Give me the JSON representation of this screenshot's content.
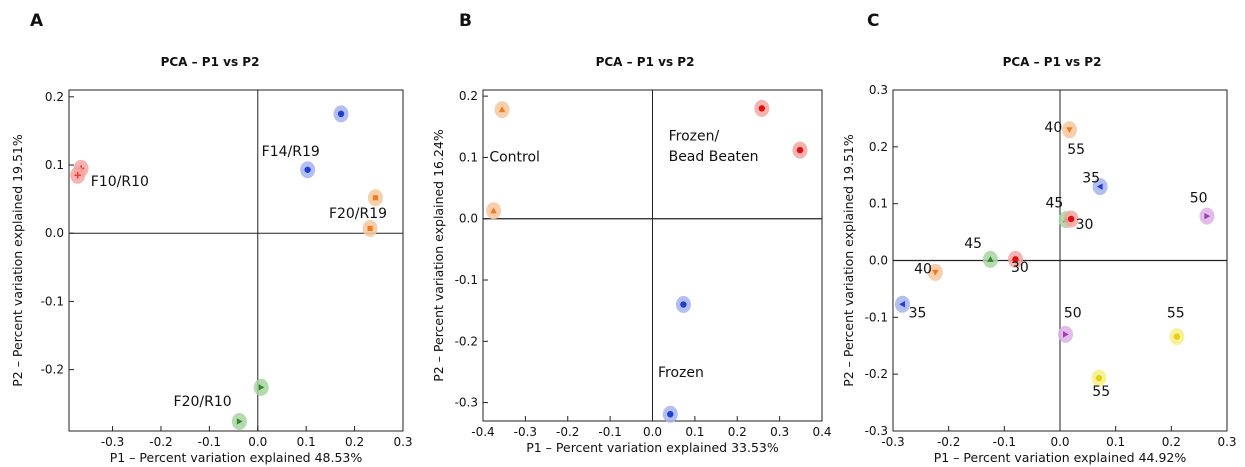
{
  "chart_data": [
    {
      "panel": "A",
      "type": "scatter",
      "title": "PCA – P1 vs P2",
      "xlabel": "P1 – Percent variation explained 48.53%",
      "ylabel": "P2 – Percent variation explained 19.51%",
      "xlim": [
        -0.39,
        0.3
      ],
      "ylim": [
        -0.29,
        0.21
      ],
      "xticks": [
        -0.3,
        -0.2,
        -0.1,
        0.0,
        0.1,
        0.2,
        0.3
      ],
      "yticks": [
        -0.3,
        -0.2,
        -0.1,
        0.0,
        0.1,
        0.2
      ],
      "xtick_labels": [
        "-0.3",
        "-0.2",
        "-0.1",
        "0.0",
        "0.1",
        "0.2",
        "0.3"
      ],
      "ytick_labels": [
        "",
        "-0.2",
        "-0.1",
        "0.0",
        "0.1",
        "0.2"
      ],
      "grid": false,
      "points": [
        {
          "x": -0.365,
          "y": 0.095,
          "color": "#e8423a",
          "halo": "#f4a6a2",
          "marker": "cross"
        },
        {
          "x": -0.372,
          "y": 0.085,
          "color": "#e8423a",
          "halo": "#f4a6a2",
          "marker": "cross"
        },
        {
          "x": 0.172,
          "y": 0.175,
          "color": "#1f3fd6",
          "halo": "#a6b3ef",
          "marker": "dot"
        },
        {
          "x": 0.103,
          "y": 0.093,
          "color": "#1f3fd6",
          "halo": "#a6b3ef",
          "marker": "dot"
        },
        {
          "x": 0.243,
          "y": 0.052,
          "color": "#f07a1c",
          "halo": "#f7c79f",
          "marker": "square"
        },
        {
          "x": 0.232,
          "y": 0.007,
          "color": "#f07a1c",
          "halo": "#f7c79f",
          "marker": "square"
        },
        {
          "x": 0.007,
          "y": -0.226,
          "color": "#2f8a2f",
          "halo": "#a8d3a2",
          "marker": "tri-right"
        },
        {
          "x": -0.038,
          "y": -0.276,
          "color": "#2f8a2f",
          "halo": "#a8d3a2",
          "marker": "tri-right"
        }
      ],
      "annotations": [
        {
          "text": "F10/R10",
          "x": -0.345,
          "y": 0.069
        },
        {
          "text": "F14/R19",
          "x": 0.008,
          "y": 0.113
        },
        {
          "text": "F20/R19",
          "x": 0.147,
          "y": 0.022
        },
        {
          "text": "F20/R10",
          "x": -0.174,
          "y": -0.253
        }
      ]
    },
    {
      "panel": "B",
      "type": "scatter",
      "title": "PCA – P1 vs P2",
      "xlabel": "P1 – Percent variation explained 33.53%",
      "ylabel": "P2 – Percent variation explained 16.24%",
      "xlim": [
        -0.4,
        0.4
      ],
      "ylim": [
        -0.33,
        0.21
      ],
      "xticks": [
        -0.4,
        -0.3,
        -0.2,
        -0.1,
        0.0,
        0.1,
        0.2,
        0.3,
        0.4
      ],
      "yticks": [
        -0.3,
        -0.2,
        -0.1,
        0.0,
        0.1,
        0.2
      ],
      "xtick_labels": [
        "-0.4",
        "-0.3",
        "-0.2",
        "-0.1",
        "0.0",
        "0.1",
        "0.2",
        "0.3",
        "0.4"
      ],
      "ytick_labels": [
        "-0.3",
        "-0.2",
        "-0.1",
        "0.0",
        "0.1",
        "0.2"
      ],
      "grid": false,
      "points": [
        {
          "x": -0.355,
          "y": 0.178,
          "color": "#f07a1c",
          "halo": "#f7c79f",
          "marker": "tri-up"
        },
        {
          "x": -0.375,
          "y": 0.013,
          "color": "#f07a1c",
          "halo": "#f7c79f",
          "marker": "tri-up"
        },
        {
          "x": 0.258,
          "y": 0.18,
          "color": "#e01010",
          "halo": "#f4a6a2",
          "marker": "dot"
        },
        {
          "x": 0.348,
          "y": 0.112,
          "color": "#e01010",
          "halo": "#f4a6a2",
          "marker": "dot"
        },
        {
          "x": 0.073,
          "y": -0.14,
          "color": "#1f3fd6",
          "halo": "#a6b3ef",
          "marker": "dot"
        },
        {
          "x": 0.042,
          "y": -0.319,
          "color": "#1f3fd6",
          "halo": "#a6b3ef",
          "marker": "dot"
        }
      ],
      "annotations": [
        {
          "text": "Control",
          "x": -0.385,
          "y": 0.093
        },
        {
          "text": "Frozen/",
          "x": 0.038,
          "y": 0.128
        },
        {
          "text": "Bead Beaten",
          "x": 0.038,
          "y": 0.094
        },
        {
          "text": "Frozen",
          "x": 0.013,
          "y": -0.258
        }
      ]
    },
    {
      "panel": "C",
      "type": "scatter",
      "title": "PCA – P1 vs P2",
      "xlabel": "P1 – Percent variation explained 44.92%",
      "ylabel": "P2 – Percent variation explained 19.51%",
      "xlim": [
        -0.3,
        0.3
      ],
      "ylim": [
        -0.3,
        0.3
      ],
      "xticks": [
        -0.3,
        -0.2,
        -0.1,
        0.0,
        0.1,
        0.2,
        0.3
      ],
      "yticks": [
        -0.3,
        -0.2,
        -0.1,
        0.0,
        0.1,
        0.2,
        0.3
      ],
      "xtick_labels": [
        "-0.3",
        "-0.2",
        "-0.1",
        "0.0",
        "0.1",
        "0.2",
        "0.3"
      ],
      "ytick_labels": [
        "-0.3",
        "-0.2",
        "-0.1",
        "0.0",
        "0.1",
        "0.2",
        "0.3"
      ],
      "grid": false,
      "points": [
        {
          "x": 0.017,
          "y": 0.23,
          "color": "#f07a1c",
          "halo": "#f7c79f",
          "marker": "tri-down"
        },
        {
          "x": 0.072,
          "y": 0.13,
          "color": "#1f3fd6",
          "halo": "#a6b3ef",
          "marker": "tri-left"
        },
        {
          "x": 0.011,
          "y": 0.072,
          "color": "#2f8a2f",
          "halo": "#a8d3a2",
          "marker": "tri-up"
        },
        {
          "x": 0.02,
          "y": 0.073,
          "color": "#e01010",
          "halo": "#f4a6a2",
          "marker": "dot"
        },
        {
          "x": 0.264,
          "y": 0.078,
          "color": "#a23ab8",
          "halo": "#ddb1e6",
          "marker": "tri-right"
        },
        {
          "x": -0.125,
          "y": 0.002,
          "color": "#2f8a2f",
          "halo": "#a8d3a2",
          "marker": "tri-up"
        },
        {
          "x": -0.08,
          "y": 0.002,
          "color": "#e01010",
          "halo": "#f4a6a2",
          "marker": "dot"
        },
        {
          "x": -0.224,
          "y": -0.021,
          "color": "#f07a1c",
          "halo": "#f7c79f",
          "marker": "tri-down"
        },
        {
          "x": -0.283,
          "y": -0.077,
          "color": "#1f3fd6",
          "halo": "#a6b3ef",
          "marker": "tri-left"
        },
        {
          "x": 0.01,
          "y": -0.13,
          "color": "#a23ab8",
          "halo": "#ddb1e6",
          "marker": "tri-right"
        },
        {
          "x": 0.21,
          "y": -0.134,
          "color": "#e8d010",
          "halo": "#f7ef8a",
          "marker": "dot"
        },
        {
          "x": 0.07,
          "y": -0.207,
          "color": "#e8d010",
          "halo": "#f7ef8a",
          "marker": "dot"
        }
      ],
      "annotations": [
        {
          "text": "40",
          "x": -0.028,
          "y": 0.226
        },
        {
          "text": "55",
          "x": 0.013,
          "y": 0.187
        },
        {
          "text": "35",
          "x": 0.04,
          "y": 0.137
        },
        {
          "text": "45",
          "x": -0.026,
          "y": 0.093
        },
        {
          "text": "30",
          "x": 0.028,
          "y": 0.055
        },
        {
          "text": "50",
          "x": 0.233,
          "y": 0.102
        },
        {
          "text": "45",
          "x": -0.172,
          "y": 0.022
        },
        {
          "text": "30",
          "x": -0.088,
          "y": -0.02
        },
        {
          "text": "40",
          "x": -0.262,
          "y": -0.023
        },
        {
          "text": "35",
          "x": -0.272,
          "y": -0.1
        },
        {
          "text": "50",
          "x": 0.007,
          "y": -0.1
        },
        {
          "text": "55",
          "x": 0.192,
          "y": -0.1
        },
        {
          "text": "55",
          "x": 0.058,
          "y": -0.238
        }
      ]
    }
  ]
}
